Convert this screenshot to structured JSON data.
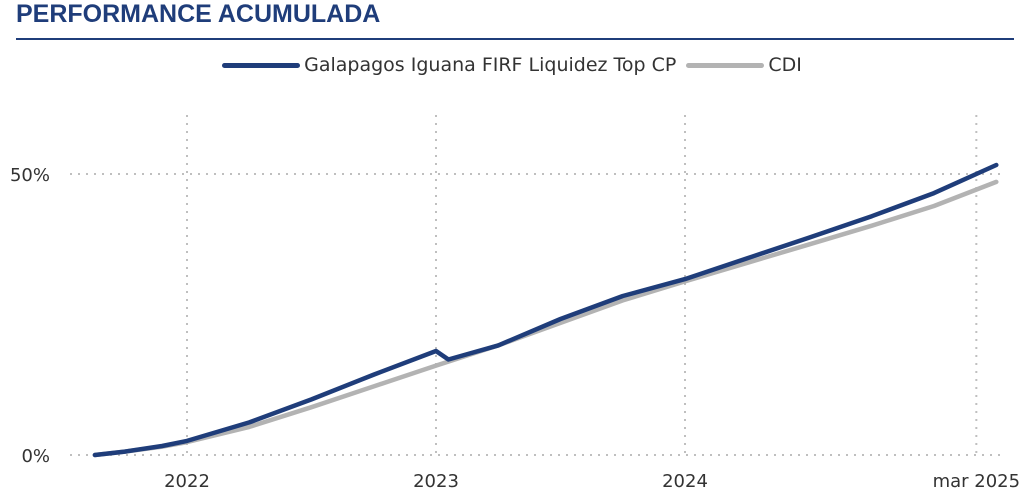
{
  "header": {
    "title": "PERFORMANCE ACUMULADA"
  },
  "colors": {
    "accent": "#1f3d7a",
    "fund": "#1f3d7a",
    "cdi": "#b3b3b3",
    "grid": "#bfbfbf"
  },
  "chart_data": {
    "type": "line",
    "title": "",
    "xlabel": "",
    "ylabel": "",
    "grid": "dotted",
    "legend_position": "top-center",
    "x_ticks": [
      {
        "t": 2022.0,
        "label": "2022"
      },
      {
        "t": 2023.0,
        "label": "2023"
      },
      {
        "t": 2024.0,
        "label": "2024"
      },
      {
        "t": 2025.17,
        "label": "mar 2025"
      }
    ],
    "y_ticks": [
      {
        "v": 0,
        "label": "0%"
      },
      {
        "v": 50,
        "label": "50%"
      }
    ],
    "xlim": [
      2021.6,
      2025.3
    ],
    "ylim": [
      0,
      60
    ],
    "series": [
      {
        "name": "Galapagos Iguana FIRF Liquidez Top CP",
        "color": "#1f3d7a",
        "points": [
          [
            2021.63,
            0.0
          ],
          [
            2021.75,
            0.6
          ],
          [
            2021.9,
            1.6
          ],
          [
            2022.0,
            2.5
          ],
          [
            2022.25,
            5.8
          ],
          [
            2022.5,
            9.9
          ],
          [
            2022.75,
            14.3
          ],
          [
            2023.0,
            18.5
          ],
          [
            2023.05,
            17.0
          ],
          [
            2023.25,
            19.5
          ],
          [
            2023.5,
            24.2
          ],
          [
            2023.75,
            28.3
          ],
          [
            2024.0,
            31.3
          ],
          [
            2024.25,
            35.0
          ],
          [
            2024.5,
            38.7
          ],
          [
            2024.75,
            42.5
          ],
          [
            2025.0,
            46.6
          ],
          [
            2025.25,
            51.6
          ]
        ]
      },
      {
        "name": "CDI",
        "color": "#b3b3b3",
        "points": [
          [
            2021.63,
            0.0
          ],
          [
            2021.75,
            0.6
          ],
          [
            2021.9,
            1.5
          ],
          [
            2022.0,
            2.3
          ],
          [
            2022.25,
            5.0
          ],
          [
            2022.5,
            8.5
          ],
          [
            2022.75,
            12.2
          ],
          [
            2023.0,
            15.9
          ],
          [
            2023.25,
            19.5
          ],
          [
            2023.5,
            23.5
          ],
          [
            2023.75,
            27.5
          ],
          [
            2024.0,
            30.9
          ],
          [
            2024.25,
            34.2
          ],
          [
            2024.5,
            37.5
          ],
          [
            2024.75,
            40.8
          ],
          [
            2025.0,
            44.3
          ],
          [
            2025.25,
            48.6
          ]
        ]
      }
    ]
  }
}
